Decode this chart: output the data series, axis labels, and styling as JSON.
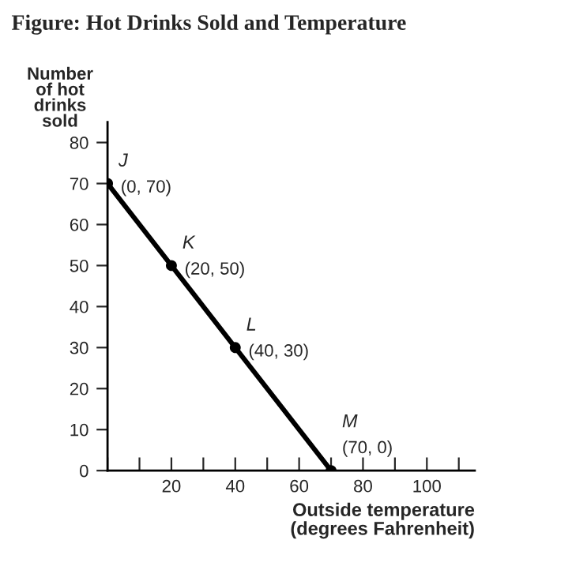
{
  "chart_data": {
    "type": "line",
    "title": "Figure: Hot Drinks Sold and Temperature",
    "xlabel": "Outside temperature\n(degrees Fahrenheit)",
    "ylabel": "Number\nof hot\ndrinks\nsold",
    "x": [
      0,
      20,
      40,
      70
    ],
    "series": [
      {
        "color": "#000000",
        "values": [
          70,
          50,
          30,
          0
        ]
      }
    ],
    "marker": "circle",
    "line_style": "solid",
    "grid": false,
    "legend": false,
    "xlim": [
      0,
      115
    ],
    "xticks": [
      {
        "value": 0,
        "label": null
      },
      {
        "value": 10,
        "label": null
      },
      20,
      {
        "value": 30,
        "label": null
      },
      40,
      {
        "value": 50,
        "label": null
      },
      60,
      {
        "value": 70,
        "label": null
      },
      80,
      {
        "value": 90,
        "label": null
      },
      100,
      {
        "value": 110,
        "label": null
      }
    ],
    "ylim": [
      0,
      85
    ],
    "yticks": [
      0,
      10,
      20,
      30,
      40,
      50,
      60,
      70,
      80
    ],
    "annotations": [
      {
        "text": "J",
        "x": 0,
        "y": 70
      },
      {
        "text": "(0, 70)",
        "x": 0,
        "y": 70
      },
      {
        "text": "K",
        "x": 20,
        "y": 50
      },
      {
        "text": "(20, 50)",
        "x": 20,
        "y": 50
      },
      {
        "text": "L",
        "x": 40,
        "y": 30
      },
      {
        "text": "(40, 30)",
        "x": 40,
        "y": 30
      },
      {
        "text": "M",
        "x": 70,
        "y": 0
      },
      {
        "text": "(70, 0)",
        "x": 70,
        "y": 0
      }
    ]
  }
}
